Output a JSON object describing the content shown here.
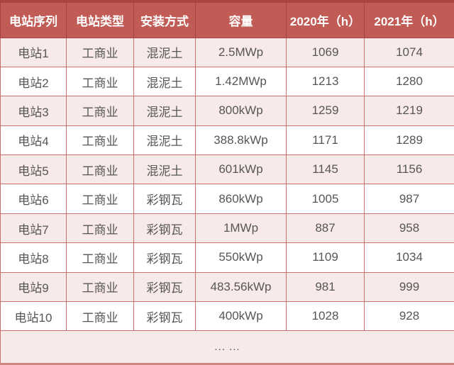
{
  "colors": {
    "header-bg": "#C05B55",
    "header-text": "#FFFFFF",
    "top-strip": "#A94541",
    "header-border": "#A34440",
    "row-pink": "#F7EAE9",
    "row-white": "#FFFFFF",
    "border": "#C9716C",
    "outer-bottom": "#D08681",
    "body-text": "#565656"
  },
  "chart_data": {
    "type": "table",
    "columns": [
      "电站序列",
      "电站类型",
      "安装方式",
      "容量",
      "2020年（h）",
      "2021年（h）"
    ],
    "rows": [
      [
        "电站1",
        "工商业",
        "混泥土",
        "2.5MWp",
        "1069",
        "1074"
      ],
      [
        "电站2",
        "工商业",
        "混泥土",
        "1.42MWp",
        "1213",
        "1280"
      ],
      [
        "电站3",
        "工商业",
        "混泥土",
        "800kWp",
        "1259",
        "1219"
      ],
      [
        "电站4",
        "工商业",
        "混泥土",
        "388.8kWp",
        "1171",
        "1289"
      ],
      [
        "电站5",
        "工商业",
        "混泥土",
        "601kWp",
        "1145",
        "1156"
      ],
      [
        "电站6",
        "工商业",
        "彩钢瓦",
        "860kWp",
        "1005",
        "987"
      ],
      [
        "电站7",
        "工商业",
        "彩钢瓦",
        "1MWp",
        "887",
        "958"
      ],
      [
        "电站8",
        "工商业",
        "彩钢瓦",
        "550kWp",
        "1109",
        "1034"
      ],
      [
        "电站9",
        "工商业",
        "彩钢瓦",
        "483.56kWp",
        "981",
        "999"
      ],
      [
        "电站10",
        "工商业",
        "彩钢瓦",
        "400kWp",
        "1028",
        "928"
      ]
    ],
    "ellipsis_row": "... ..."
  }
}
